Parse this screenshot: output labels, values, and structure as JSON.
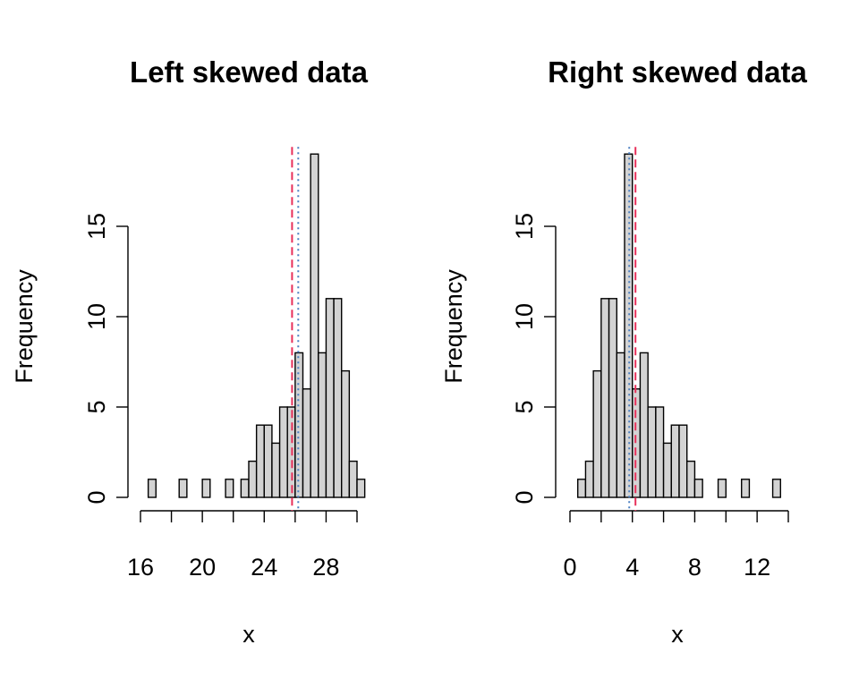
{
  "chart_data": [
    {
      "type": "histogram",
      "title": "Left skewed data",
      "xlabel": "x",
      "ylabel": "Frequency",
      "bin_width": 0.5,
      "bin_start": 16.5,
      "counts": [
        1,
        0,
        0,
        0,
        1,
        0,
        0,
        1,
        0,
        0,
        1,
        0,
        1,
        2,
        4,
        4,
        3,
        5,
        5,
        8,
        6,
        19,
        8,
        11,
        11,
        7,
        2,
        1
      ],
      "x_ticks": [
        16,
        20,
        24,
        28
      ],
      "y_ticks": [
        0,
        5,
        10,
        15
      ],
      "xlim": [
        16,
        30
      ],
      "ylim": [
        0,
        19
      ],
      "mean_line": {
        "value": 25.8,
        "color": "#e8305a",
        "style": "dashed"
      },
      "median_line": {
        "value": 26.2,
        "color": "#4a7fc1",
        "style": "dotted"
      },
      "bar_fill": "#d3d3d3"
    },
    {
      "type": "histogram",
      "title": "Right skewed data",
      "xlabel": "x",
      "ylabel": "Frequency",
      "bin_width": 0.5,
      "bin_start": 0.5,
      "counts": [
        1,
        2,
        7,
        11,
        11,
        8,
        19,
        6,
        8,
        5,
        5,
        3,
        4,
        4,
        2,
        1,
        0,
        0,
        1,
        0,
        0,
        1,
        0,
        0,
        0,
        1
      ],
      "x_ticks": [
        0,
        4,
        8,
        12
      ],
      "y_ticks": [
        0,
        5,
        10,
        15
      ],
      "xlim": [
        0,
        14
      ],
      "ylim": [
        0,
        19
      ],
      "mean_line": {
        "value": 4.2,
        "color": "#e8305a",
        "style": "dashed"
      },
      "median_line": {
        "value": 3.8,
        "color": "#4a7fc1",
        "style": "dotted"
      },
      "bar_fill": "#d3d3d3"
    }
  ]
}
